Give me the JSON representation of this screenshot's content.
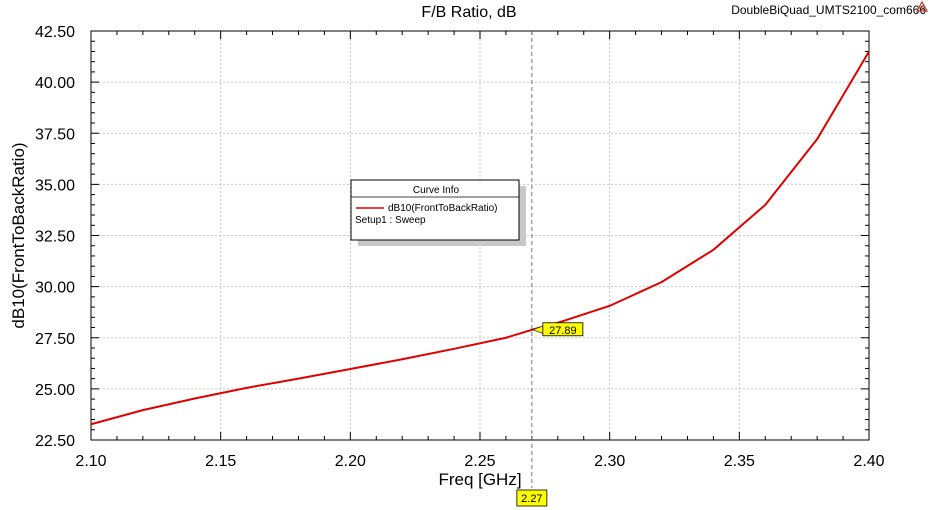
{
  "header": {
    "title": "F/B Ratio, dB",
    "project_name": "DoubleBiQuad_UMTS2100_com666"
  },
  "legend": {
    "title": "Curve Info",
    "entries": [
      {
        "name": "dB10(FrontToBackRatio)",
        "subtitle": "Setup1 : Sweep",
        "color": "#e00000"
      }
    ]
  },
  "marker": {
    "x_label": "2.27",
    "y_label": "27.89",
    "x": 2.27,
    "y": 27.89,
    "box_color": "#ffff00"
  },
  "logo": {
    "icon": "ansys-logo-icon",
    "color": "#c0392b"
  },
  "chart_data": {
    "type": "line",
    "title": "F/B Ratio, dB",
    "xlabel": "Freq [GHz]",
    "ylabel": "dB10(FrontToBackRatio)",
    "xlim": [
      2.1,
      2.4
    ],
    "ylim": [
      22.5,
      42.5
    ],
    "x_ticks": [
      "2.10",
      "2.15",
      "2.20",
      "2.25",
      "2.30",
      "2.35",
      "2.40"
    ],
    "y_ticks": [
      "22.50",
      "25.00",
      "27.50",
      "30.00",
      "32.50",
      "35.00",
      "37.50",
      "40.00",
      "42.50"
    ],
    "x_minor_per_major": 5,
    "y_minor_per_major": 5,
    "grid": true,
    "legend_position": "center-left",
    "series": [
      {
        "name": "dB10(FrontToBackRatio)",
        "color": "#e00000",
        "x": [
          2.1,
          2.12,
          2.14,
          2.16,
          2.18,
          2.2,
          2.22,
          2.24,
          2.26,
          2.27,
          2.28,
          2.3,
          2.32,
          2.34,
          2.36,
          2.38,
          2.4
        ],
        "y": [
          23.27,
          23.96,
          24.53,
          25.05,
          25.5,
          25.97,
          26.45,
          26.96,
          27.5,
          27.89,
          28.23,
          29.06,
          30.22,
          31.8,
          34.0,
          37.21,
          41.5
        ]
      }
    ]
  }
}
